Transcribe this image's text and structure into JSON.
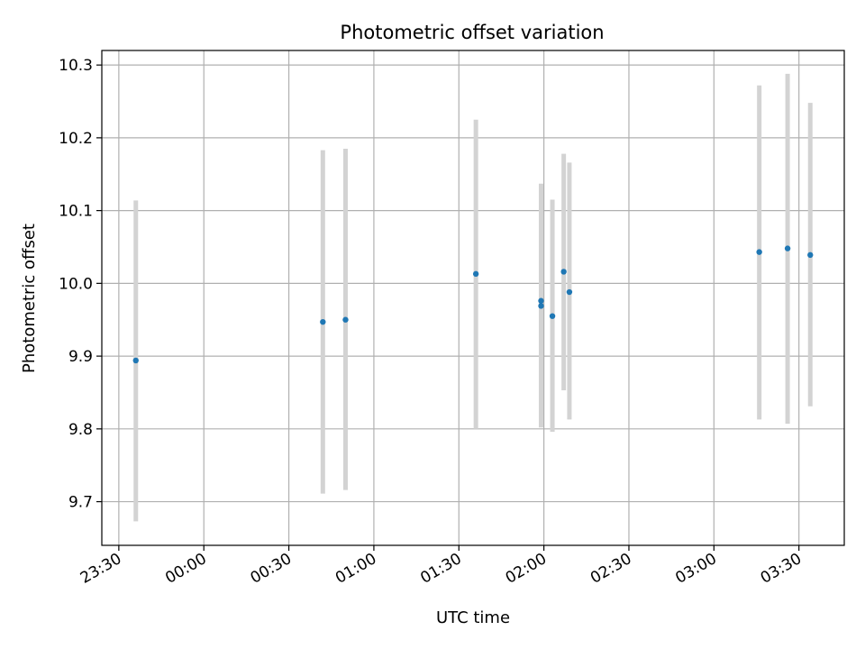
{
  "chart_data": {
    "type": "scatter",
    "title": "Photometric offset variation",
    "xlabel": "UTC time",
    "ylabel": "Photometric offset",
    "xlim": [
      "23:24",
      "03:46"
    ],
    "ylim": [
      9.64,
      10.32
    ],
    "grid": true,
    "x_ticks": [
      "23:30",
      "00:00",
      "00:30",
      "01:00",
      "01:30",
      "02:00",
      "02:30",
      "03:00",
      "03:30"
    ],
    "y_ticks": [
      "9.7",
      "9.8",
      "9.9",
      "10.0",
      "10.1",
      "10.2",
      "10.3"
    ],
    "errorbar_color": "#d3d3d3",
    "marker_color": "#1f77b4",
    "points": [
      {
        "x": "23:36",
        "y": 9.894,
        "ylow": 9.673,
        "yhigh": 10.114
      },
      {
        "x": "00:42",
        "y": 9.947,
        "ylow": 9.711,
        "yhigh": 10.183
      },
      {
        "x": "00:50",
        "y": 9.95,
        "ylow": 9.716,
        "yhigh": 10.185
      },
      {
        "x": "01:36",
        "y": 10.013,
        "ylow": 9.8,
        "yhigh": 10.225
      },
      {
        "x": "01:59",
        "y": 9.969,
        "ylow": 9.802,
        "yhigh": 10.137
      },
      {
        "x": "01:59",
        "y": 9.976,
        "ylow": 9.82,
        "yhigh": 10.133
      },
      {
        "x": "02:03",
        "y": 9.955,
        "ylow": 9.796,
        "yhigh": 10.115
      },
      {
        "x": "02:07",
        "y": 10.016,
        "ylow": 9.853,
        "yhigh": 10.178
      },
      {
        "x": "02:09",
        "y": 9.988,
        "ylow": 9.813,
        "yhigh": 10.166
      },
      {
        "x": "03:16",
        "y": 10.043,
        "ylow": 9.813,
        "yhigh": 10.272
      },
      {
        "x": "03:26",
        "y": 10.048,
        "ylow": 9.807,
        "yhigh": 10.288
      },
      {
        "x": "03:34",
        "y": 10.039,
        "ylow": 9.831,
        "yhigh": 10.248
      }
    ]
  }
}
